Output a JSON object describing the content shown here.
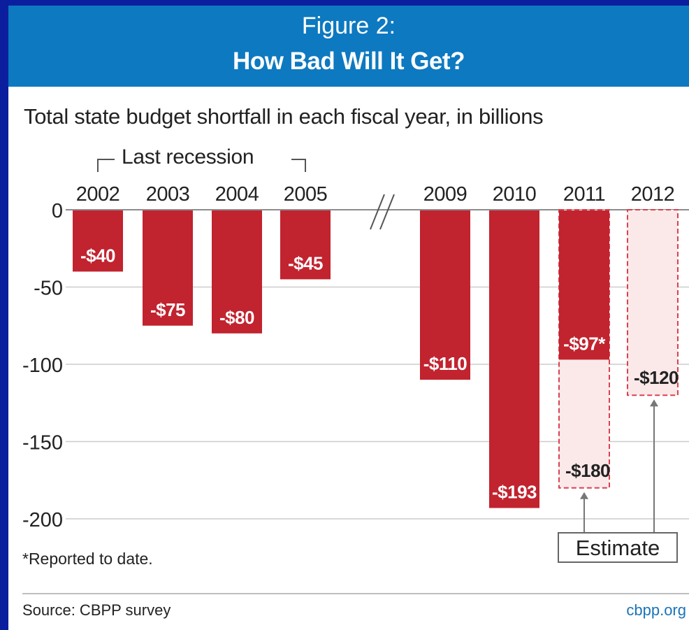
{
  "header": {
    "figure_label": "Figure 2:",
    "title": "How Bad Will It Get?"
  },
  "subtitle": "Total state budget shortfall in each fiscal year, in billions",
  "chart_data": {
    "type": "bar",
    "categories": [
      "2002",
      "2003",
      "2004",
      "2005",
      "2009",
      "2010",
      "2011",
      "2012"
    ],
    "series": [
      {
        "values": [
          -40,
          -75,
          -80,
          -45,
          -110,
          -193,
          -97,
          null
        ]
      }
    ],
    "estimates": [
      {
        "category": "2011",
        "value": -180,
        "label": "-$180"
      },
      {
        "category": "2012",
        "value": -120,
        "label": "-$120"
      }
    ],
    "data_labels": [
      "-$40",
      "-$75",
      "-$80",
      "-$45",
      "-$110",
      "-$193",
      "-$97*",
      ""
    ],
    "yticks": [
      0,
      -50,
      -100,
      -150,
      -200
    ],
    "ytick_labels": [
      "0",
      "-50",
      "-100",
      "-150",
      "-200"
    ],
    "ylim": [
      -200,
      0
    ],
    "grid": true,
    "axis_break": "between 2005 and 2009",
    "annotations": {
      "recession_label": "Last recession",
      "estimate_label": "Estimate"
    },
    "colors": {
      "actual_fill": "#c1232f",
      "estimate_fill": "#fbe9ea",
      "estimate_border": "#d9414e",
      "grid": "#cccccc"
    }
  },
  "footnote": "*Reported to date.",
  "source": "Source: CBPP survey",
  "site": "cbpp.org"
}
